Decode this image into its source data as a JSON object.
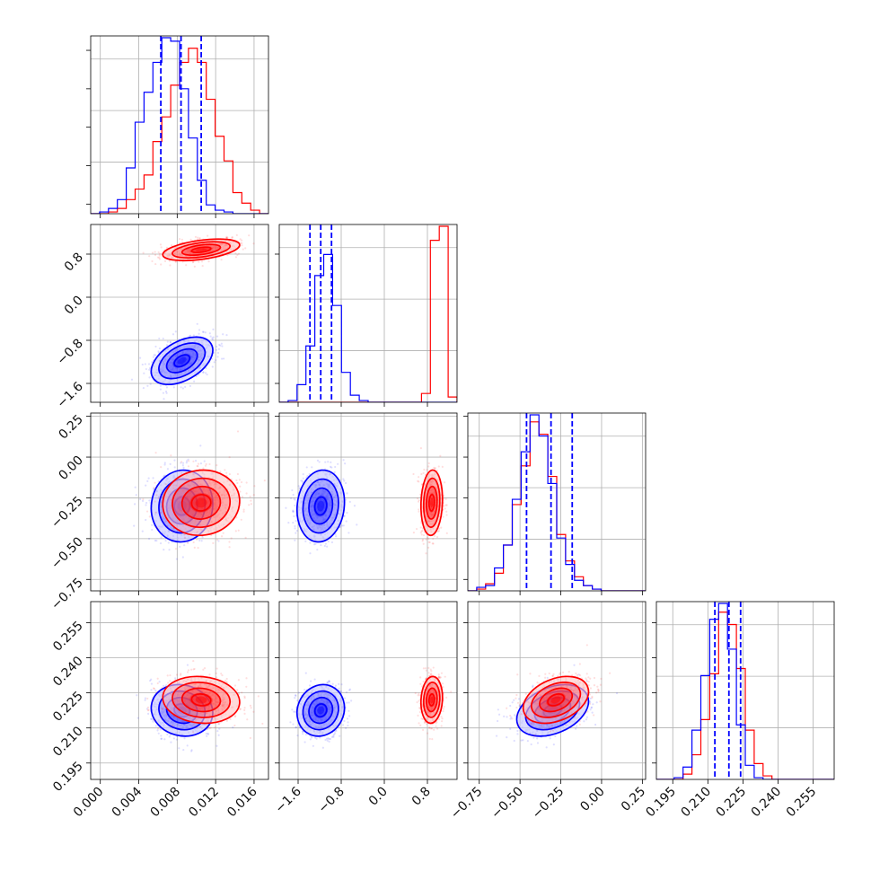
{
  "chart_data": {
    "type": "corner",
    "colors": {
      "blue": "#0000ff",
      "red": "#ff0000",
      "grid": "#b0b0b0"
    },
    "parameters": [
      {
        "range": [
          -0.001,
          0.0175
        ],
        "ticks": [
          0.0,
          0.004,
          0.008,
          0.012,
          0.016
        ],
        "tick_labels": [
          "0.000",
          "0.004",
          "0.008",
          "0.012",
          "0.016"
        ]
      },
      {
        "range": [
          -1.95,
          1.35
        ],
        "ticks": [
          -1.6,
          -0.8,
          0.0,
          0.8
        ],
        "tick_labels": [
          "−1.6",
          "−0.8",
          "0.0",
          "0.8"
        ]
      },
      {
        "range": [
          -0.82,
          0.27
        ],
        "ticks": [
          -0.75,
          -0.5,
          -0.25,
          0.0,
          0.25
        ],
        "tick_labels": [
          "−0.75",
          "−0.50",
          "−0.25",
          "0.00",
          "0.25"
        ]
      },
      {
        "range": [
          0.188,
          0.264
        ],
        "ticks": [
          0.195,
          0.21,
          0.225,
          0.24,
          0.255
        ],
        "tick_labels": [
          "0.195",
          "0.210",
          "0.225",
          "0.240",
          "0.255"
        ]
      }
    ],
    "series": [
      {
        "color": "blue",
        "mean": [
          0.0085,
          -1.18,
          -0.3,
          0.2175
        ],
        "sd": [
          0.0016,
          0.22,
          0.11,
          0.0055
        ],
        "quantiles": [
          [
            0.0063,
            0.0084,
            0.0105
          ],
          [
            -1.38,
            -1.18,
            -0.98
          ],
          [
            -0.46,
            -0.31,
            -0.18
          ],
          [
            0.213,
            0.219,
            0.224
          ]
        ]
      },
      {
        "color": "red",
        "mean": [
          0.0105,
          0.88,
          -0.28,
          0.222
        ],
        "sd": [
          0.002,
          0.1,
          0.1,
          0.005
        ],
        "quantiles": []
      }
    ],
    "histograms": [
      {
        "blue": [
          0,
          1,
          3,
          8,
          26,
          52,
          69,
          86,
          100,
          98,
          71,
          43,
          19,
          5,
          2,
          1,
          0,
          0,
          0,
          0
        ],
        "red": [
          0,
          0,
          1,
          3,
          8,
          14,
          22,
          41,
          55,
          73,
          86,
          94,
          86,
          65,
          44,
          30,
          12,
          6,
          2,
          0
        ]
      },
      {
        "blue": [
          0,
          1,
          10,
          32,
          72,
          84,
          55,
          17,
          4,
          1,
          0,
          0,
          0,
          0,
          0,
          0,
          0,
          0,
          0,
          0
        ],
        "red": [
          0,
          0,
          0,
          0,
          0,
          0,
          0,
          0,
          0,
          0,
          0,
          0,
          0,
          0,
          0,
          0,
          5,
          92,
          100,
          3
        ]
      },
      {
        "blue": [
          0,
          2,
          3,
          13,
          26,
          52,
          79,
          100,
          88,
          61,
          30,
          15,
          6,
          3,
          1,
          0,
          0,
          0,
          0,
          0
        ],
        "red": [
          0,
          1,
          4,
          10,
          26,
          49,
          71,
          96,
          89,
          65,
          32,
          17,
          8,
          3,
          1,
          0,
          0,
          0,
          0,
          0
        ]
      },
      {
        "blue": [
          0,
          0,
          1,
          7,
          28,
          59,
          91,
          100,
          74,
          31,
          8,
          1,
          0,
          0,
          0,
          0,
          0,
          0,
          0,
          0
        ],
        "red": [
          0,
          0,
          0,
          3,
          14,
          34,
          60,
          95,
          88,
          63,
          28,
          9,
          2,
          0,
          0,
          0,
          0,
          0,
          0,
          0
        ]
      }
    ]
  }
}
